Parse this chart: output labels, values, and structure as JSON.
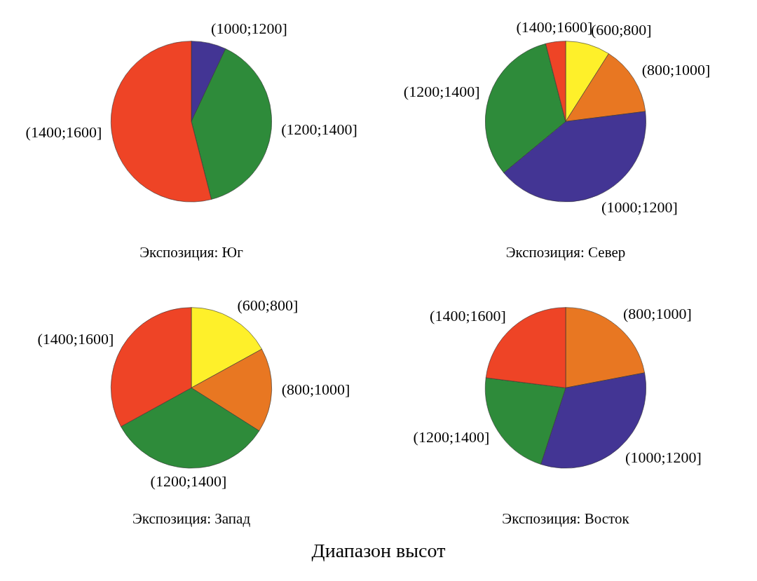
{
  "chart_data": [
    {
      "type": "pie",
      "title": "Экспозиция: Юг",
      "categories": [
        "(1000;1200]",
        "(1200;1400]",
        "(1400;1600]"
      ],
      "values": [
        7,
        39,
        54
      ],
      "colors": [
        "#433594",
        "#2e8b3a",
        "#ee4426"
      ]
    },
    {
      "type": "pie",
      "title": "Экспозиция: Север",
      "categories": [
        "(600;800]",
        "(800;1000]",
        "(1000;1200]",
        "(1200;1400]",
        "(1400;1600]"
      ],
      "values": [
        9,
        14,
        41,
        32,
        4
      ],
      "colors": [
        "#fef02a",
        "#e87722",
        "#433594",
        "#2e8b3a",
        "#ee4426"
      ]
    },
    {
      "type": "pie",
      "title": "Экспозиция: Запад",
      "categories": [
        "(600;800]",
        "(800;1000]",
        "(1200;1400]",
        "(1400;1600]"
      ],
      "values": [
        17,
        17,
        33,
        33
      ],
      "colors": [
        "#fef02a",
        "#e87722",
        "#2e8b3a",
        "#ee4426"
      ]
    },
    {
      "type": "pie",
      "title": "Экспозиция: Восток",
      "categories": [
        "(800;1000]",
        "(1000;1200]",
        "(1200;1400]",
        "(1400;1600]"
      ],
      "values": [
        22,
        33,
        22,
        23
      ],
      "colors": [
        "#e87722",
        "#433594",
        "#2e8b3a",
        "#ee4426"
      ],
      "annotations": [
        "Диапазон высот"
      ]
    }
  ]
}
